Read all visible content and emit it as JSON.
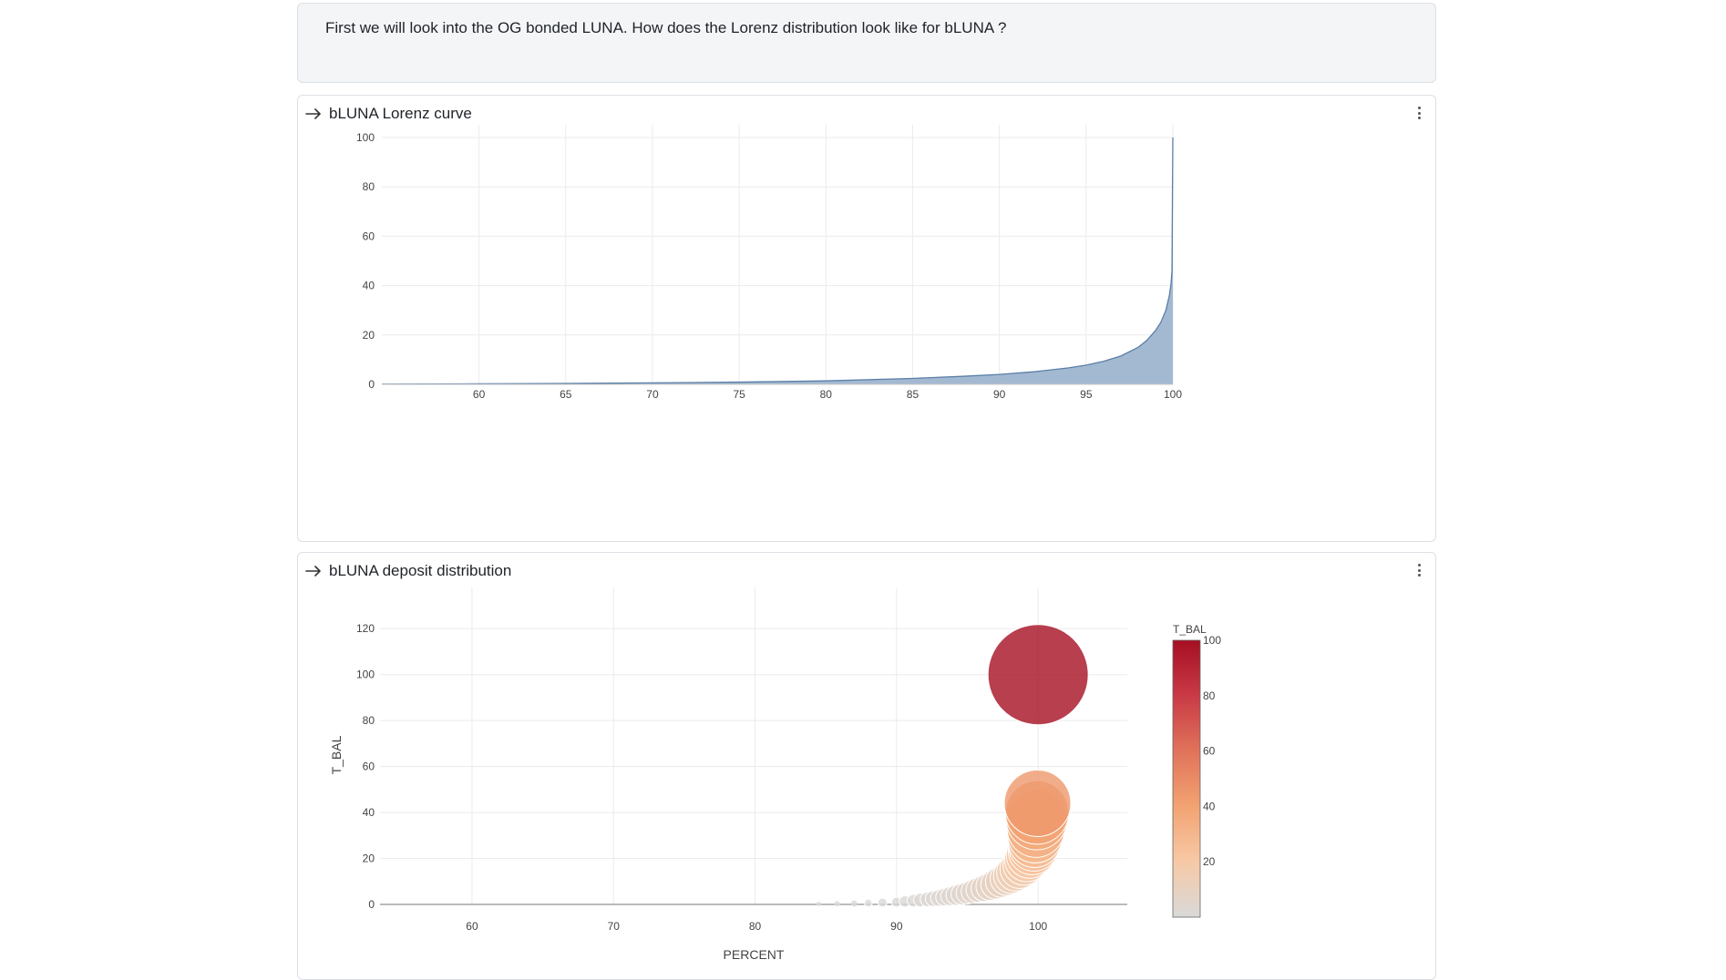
{
  "intro_text": "First we will look into the OG bonded LUNA. How does the Lorenz distribution look like for bLUNA ?",
  "panels": [
    {
      "title": "bLUNA Lorenz curve"
    },
    {
      "title": "bLUNA deposit distribution"
    }
  ],
  "colors": {
    "area_fill": "#a3b9d1",
    "area_line": "#5a7fa8",
    "grid": "#ebebeb",
    "colorscale": [
      "#d9d9d9",
      "#f7c9a6",
      "#f2a372",
      "#e0735a",
      "#c93a46",
      "#a50f22"
    ]
  },
  "chart_data": [
    {
      "type": "area",
      "title": "bLUNA Lorenz curve",
      "xlabel": "",
      "ylabel": "",
      "xlim": [
        54.4,
        100
      ],
      "ylim": [
        0,
        100
      ],
      "x_ticks": [
        60,
        65,
        70,
        75,
        80,
        85,
        90,
        95,
        100
      ],
      "y_ticks": [
        0,
        20,
        40,
        60,
        80,
        100
      ],
      "grid": true,
      "x": [
        54.4,
        60,
        65,
        70,
        75,
        80,
        85,
        88,
        90,
        92,
        94,
        95,
        96,
        97,
        98,
        98.5,
        99,
        99.3,
        99.6,
        99.8,
        99.9,
        99.95,
        100
      ],
      "y": [
        0.1,
        0.2,
        0.35,
        0.6,
        0.9,
        1.4,
        2.4,
        3.3,
        4.0,
        5.1,
        6.7,
        7.8,
        9.3,
        11.5,
        15,
        17.8,
        21.8,
        25,
        30,
        36,
        41,
        46,
        100
      ]
    },
    {
      "type": "scatter",
      "title": "bLUNA deposit distribution",
      "xlabel": "PERCENT",
      "ylabel": "T_BAL",
      "xlim": [
        53.5,
        106.3
      ],
      "ylim": [
        0,
        130
      ],
      "x_ticks": [
        60,
        70,
        80,
        90,
        100
      ],
      "y_ticks": [
        0,
        20,
        40,
        60,
        80,
        100,
        120
      ],
      "grid": true,
      "colorbar": {
        "title": "T_BAL",
        "ticks": [
          20,
          40,
          60,
          80,
          100
        ],
        "range": [
          0,
          100
        ]
      },
      "x": [
        84.5,
        85.8,
        87,
        88,
        89,
        90,
        90.6,
        91.2,
        91.7,
        92.2,
        92.6,
        93,
        93.4,
        93.8,
        94.2,
        94.6,
        95,
        95.4,
        95.8,
        96.2,
        96.6,
        97,
        97.4,
        97.8,
        98.1,
        98.4,
        98.7,
        99,
        99.2,
        99.4,
        99.6,
        99.7,
        99.75,
        99.8,
        99.85,
        99.9,
        99.93,
        99.96,
        100
      ],
      "y": [
        0.2,
        0.3,
        0.4,
        0.6,
        0.8,
        1.0,
        1.3,
        1.6,
        1.9,
        2.2,
        2.5,
        2.8,
        3.2,
        3.6,
        4.0,
        4.5,
        5.0,
        5.6,
        6.3,
        7.0,
        7.8,
        8.8,
        10,
        11.2,
        12.5,
        14,
        15.5,
        17.5,
        19.5,
        21.5,
        23.5,
        25.5,
        27.5,
        30,
        33,
        37,
        40,
        44,
        100
      ]
    }
  ]
}
